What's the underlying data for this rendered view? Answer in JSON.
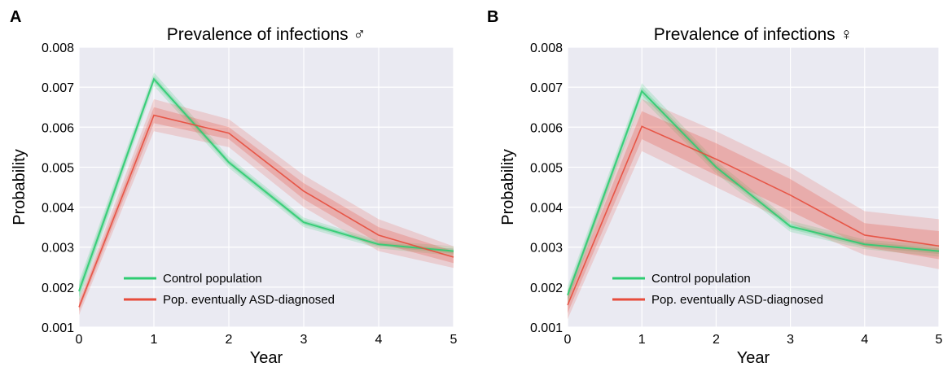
{
  "chart_data": [
    {
      "panel": "A",
      "type": "line",
      "title": "Prevalence of infections ♂",
      "xlabel": "Year",
      "ylabel": "Probability",
      "xlim": [
        0,
        5
      ],
      "ylim": [
        0.001,
        0.008
      ],
      "x_ticks": [
        "0",
        "1",
        "2",
        "3",
        "4",
        "5"
      ],
      "y_ticks": [
        "0.001",
        "0.002",
        "0.003",
        "0.004",
        "0.005",
        "0.006",
        "0.007",
        "0.008"
      ],
      "grid": true,
      "legend_position": "lower-left",
      "x": [
        0,
        1,
        2,
        3,
        4,
        5
      ],
      "series": [
        {
          "name": "Control population",
          "color": "#2ecc71",
          "values": [
            0.0019,
            0.0072,
            0.00512,
            0.00362,
            0.00307,
            0.0029
          ],
          "lower": [
            0.00175,
            0.00712,
            0.00505,
            0.00356,
            0.00302,
            0.00284
          ],
          "upper": [
            0.00205,
            0.00728,
            0.00519,
            0.00368,
            0.00312,
            0.00296
          ],
          "lower_outer": [
            0.00165,
            0.00703,
            0.00498,
            0.0035,
            0.00297,
            0.00278
          ],
          "upper_outer": [
            0.00215,
            0.00737,
            0.00526,
            0.00374,
            0.00317,
            0.00302
          ]
        },
        {
          "name": "Pop. eventually ASD-diagnosed",
          "color": "#e74c3c",
          "values": [
            0.0015,
            0.0063,
            0.00585,
            0.0044,
            0.0033,
            0.00275
          ],
          "lower": [
            0.0014,
            0.0061,
            0.0057,
            0.0042,
            0.0031,
            0.0026
          ],
          "upper": [
            0.0016,
            0.0065,
            0.006,
            0.0046,
            0.0035,
            0.0029
          ],
          "lower_outer": [
            0.0013,
            0.0059,
            0.0055,
            0.004,
            0.0029,
            0.00248
          ],
          "upper_outer": [
            0.0017,
            0.0067,
            0.0062,
            0.0048,
            0.0037,
            0.00302
          ]
        }
      ]
    },
    {
      "panel": "B",
      "type": "line",
      "title": "Prevalence of infections ♀",
      "xlabel": "Year",
      "ylabel": "Probability",
      "xlim": [
        0,
        5
      ],
      "ylim": [
        0.001,
        0.008
      ],
      "x_ticks": [
        "0",
        "1",
        "2",
        "3",
        "4",
        "5"
      ],
      "y_ticks": [
        "0.001",
        "0.002",
        "0.003",
        "0.004",
        "0.005",
        "0.006",
        "0.007",
        "0.008"
      ],
      "grid": true,
      "legend_position": "lower-left",
      "x": [
        0,
        1,
        2,
        3,
        4,
        5
      ],
      "series": [
        {
          "name": "Control population",
          "color": "#2ecc71",
          "values": [
            0.0018,
            0.0069,
            0.005,
            0.00352,
            0.00307,
            0.0029
          ],
          "lower": [
            0.00168,
            0.0068,
            0.00492,
            0.00345,
            0.00301,
            0.00283
          ],
          "upper": [
            0.00192,
            0.007,
            0.00508,
            0.00359,
            0.00313,
            0.00297
          ],
          "lower_outer": [
            0.00158,
            0.0067,
            0.00484,
            0.00338,
            0.00295,
            0.00276
          ],
          "upper_outer": [
            0.00202,
            0.0071,
            0.00516,
            0.00366,
            0.00319,
            0.00304
          ]
        },
        {
          "name": "Pop. eventually ASD-diagnosed",
          "color": "#e74c3c",
          "values": [
            0.00155,
            0.00602,
            0.0052,
            0.0043,
            0.0033,
            0.00303
          ],
          "lower": [
            0.00135,
            0.0057,
            0.0048,
            0.0039,
            0.003,
            0.0027
          ],
          "upper": [
            0.00175,
            0.0064,
            0.0056,
            0.0047,
            0.0036,
            0.0034
          ],
          "lower_outer": [
            0.0012,
            0.0054,
            0.0045,
            0.0036,
            0.0028,
            0.00245
          ],
          "upper_outer": [
            0.0019,
            0.0067,
            0.0059,
            0.005,
            0.0039,
            0.0037
          ]
        }
      ]
    }
  ]
}
